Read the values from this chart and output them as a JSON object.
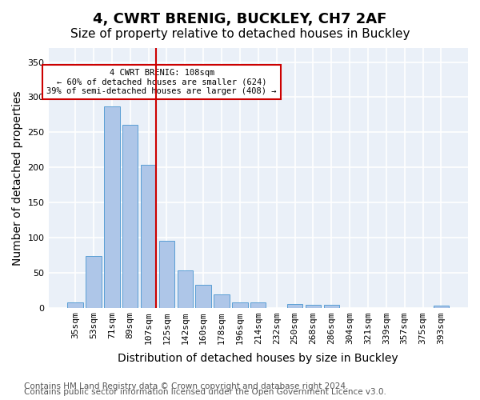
{
  "title1": "4, CWRT BRENIG, BUCKLEY, CH7 2AF",
  "title2": "Size of property relative to detached houses in Buckley",
  "xlabel": "Distribution of detached houses by size in Buckley",
  "ylabel": "Number of detached properties",
  "categories": [
    "35sqm",
    "53sqm",
    "71sqm",
    "89sqm",
    "107sqm",
    "125sqm",
    "142sqm",
    "160sqm",
    "178sqm",
    "196sqm",
    "214sqm",
    "232sqm",
    "250sqm",
    "268sqm",
    "286sqm",
    "304sqm",
    "321sqm",
    "339sqm",
    "357sqm",
    "375sqm",
    "393sqm"
  ],
  "values": [
    8,
    73,
    287,
    260,
    204,
    95,
    53,
    32,
    19,
    8,
    8,
    0,
    5,
    4,
    4,
    0,
    0,
    0,
    0,
    0,
    3
  ],
  "bar_color": "#aec6e8",
  "bar_edge_color": "#5a9fd4",
  "vline_x_index": 4,
  "vline_color": "#cc0000",
  "annotation_text": "4 CWRT BRENIG: 108sqm\n← 60% of detached houses are smaller (624)\n39% of semi-detached houses are larger (408) →",
  "annotation_box_color": "#ffffff",
  "annotation_box_edge": "#cc0000",
  "ylim": [
    0,
    370
  ],
  "yticks": [
    0,
    50,
    100,
    150,
    200,
    250,
    300,
    350
  ],
  "background_color": "#eaf0f8",
  "grid_color": "#ffffff",
  "footer1": "Contains HM Land Registry data © Crown copyright and database right 2024.",
  "footer2": "Contains public sector information licensed under the Open Government Licence v3.0.",
  "title_fontsize": 13,
  "subtitle_fontsize": 11,
  "axis_label_fontsize": 10,
  "tick_fontsize": 8,
  "footer_fontsize": 7.5
}
